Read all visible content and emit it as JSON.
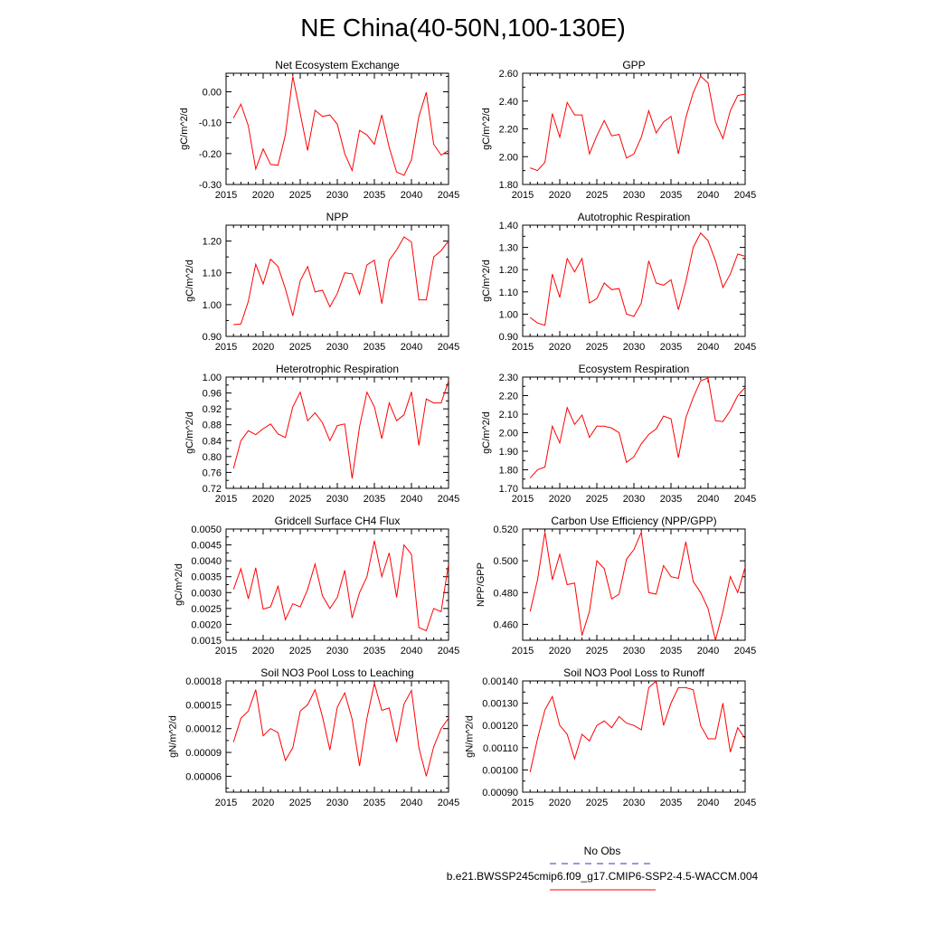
{
  "page_title": "NE China(40-50N,100-130E)",
  "legend": {
    "obs_label": "No Obs",
    "obs_color": "#3333cc",
    "model_label": "b.e21.BWSSP245cmip6.f09_g17.CMIP6-SSP2-4.5-WACCM.004",
    "model_color": "#ff0000"
  },
  "chart_data": [
    {
      "type": "line",
      "title": "Net Ecosystem Exchange",
      "ylabel": "gC/m^2/d",
      "xlim": [
        2015,
        2045
      ],
      "ylim": [
        -0.3,
        0.06
      ],
      "xticks": [
        2015,
        2020,
        2025,
        2030,
        2035,
        2040,
        2045
      ],
      "yticks": [
        -0.3,
        -0.2,
        -0.1,
        0.0
      ],
      "ytick_labels": [
        "-0.30",
        "-0.20",
        "-0.10",
        "0.00"
      ],
      "series": [
        {
          "color": "#ff0000",
          "x": [
            2016,
            2017,
            2018,
            2019,
            2020,
            2021,
            2022,
            2023,
            2024,
            2025,
            2026,
            2027,
            2028,
            2029,
            2030,
            2031,
            2032,
            2033,
            2034,
            2035,
            2036,
            2037,
            2038,
            2039,
            2040,
            2041,
            2042,
            2043,
            2044,
            2045
          ],
          "y": [
            -0.085,
            -0.04,
            -0.11,
            -0.25,
            -0.185,
            -0.235,
            -0.238,
            -0.14,
            0.05,
            -0.07,
            -0.19,
            -0.06,
            -0.08,
            -0.075,
            -0.105,
            -0.2,
            -0.255,
            -0.125,
            -0.14,
            -0.17,
            -0.075,
            -0.18,
            -0.26,
            -0.27,
            -0.22,
            -0.08,
            -0.002,
            -0.17,
            -0.205,
            -0.19
          ]
        }
      ]
    },
    {
      "type": "line",
      "title": "GPP",
      "ylabel": "gC/m^2/d",
      "xlim": [
        2015,
        2045
      ],
      "ylim": [
        1.8,
        2.6
      ],
      "xticks": [
        2015,
        2020,
        2025,
        2030,
        2035,
        2040,
        2045
      ],
      "yticks": [
        1.8,
        2.0,
        2.2,
        2.4,
        2.6
      ],
      "ytick_labels": [
        "1.80",
        "2.00",
        "2.20",
        "2.40",
        "2.60"
      ],
      "series": [
        {
          "color": "#ff0000",
          "x": [
            2016,
            2017,
            2018,
            2019,
            2020,
            2021,
            2022,
            2023,
            2024,
            2025,
            2026,
            2027,
            2028,
            2029,
            2030,
            2031,
            2032,
            2033,
            2034,
            2035,
            2036,
            2037,
            2038,
            2039,
            2040,
            2041,
            2042,
            2043,
            2044,
            2045
          ],
          "y": [
            1.92,
            1.9,
            1.96,
            2.31,
            2.14,
            2.39,
            2.3,
            2.3,
            2.02,
            2.15,
            2.26,
            2.15,
            2.16,
            1.99,
            2.02,
            2.14,
            2.33,
            2.17,
            2.25,
            2.29,
            2.02,
            2.28,
            2.46,
            2.58,
            2.53,
            2.25,
            2.13,
            2.33,
            2.44,
            2.45
          ]
        }
      ]
    },
    {
      "type": "line",
      "title": "NPP",
      "ylabel": "gC/m^2/d",
      "xlim": [
        2015,
        2045
      ],
      "ylim": [
        0.9,
        1.25
      ],
      "xticks": [
        2015,
        2020,
        2025,
        2030,
        2035,
        2040,
        2045
      ],
      "yticks": [
        0.9,
        1.0,
        1.1,
        1.2
      ],
      "ytick_labels": [
        "0.90",
        "1.00",
        "1.10",
        "1.20"
      ],
      "series": [
        {
          "color": "#ff0000",
          "x": [
            2016,
            2017,
            2018,
            2019,
            2020,
            2021,
            2022,
            2023,
            2024,
            2025,
            2026,
            2027,
            2028,
            2029,
            2030,
            2031,
            2032,
            2033,
            2034,
            2035,
            2036,
            2037,
            2038,
            2039,
            2040,
            2041,
            2042,
            2043,
            2044,
            2045
          ],
          "y": [
            0.937,
            0.939,
            1.01,
            1.127,
            1.065,
            1.143,
            1.12,
            1.05,
            0.965,
            1.075,
            1.12,
            1.04,
            1.045,
            0.993,
            1.035,
            1.1,
            1.097,
            1.033,
            1.125,
            1.14,
            1.003,
            1.14,
            1.172,
            1.213,
            1.197,
            1.015,
            1.015,
            1.15,
            1.17,
            1.2
          ]
        }
      ]
    },
    {
      "type": "line",
      "title": "Autotrophic Respiration",
      "ylabel": "gC/m^2/d",
      "xlim": [
        2015,
        2045
      ],
      "ylim": [
        0.9,
        1.4
      ],
      "xticks": [
        2015,
        2020,
        2025,
        2030,
        2035,
        2040,
        2045
      ],
      "yticks": [
        0.9,
        1.0,
        1.1,
        1.2,
        1.3,
        1.4
      ],
      "ytick_labels": [
        "0.90",
        "1.00",
        "1.10",
        "1.20",
        "1.30",
        "1.40"
      ],
      "series": [
        {
          "color": "#ff0000",
          "x": [
            2016,
            2017,
            2018,
            2019,
            2020,
            2021,
            2022,
            2023,
            2024,
            2025,
            2026,
            2027,
            2028,
            2029,
            2030,
            2031,
            2032,
            2033,
            2034,
            2035,
            2036,
            2037,
            2038,
            2039,
            2040,
            2041,
            2042,
            2043,
            2044,
            2045
          ],
          "y": [
            0.985,
            0.96,
            0.95,
            1.18,
            1.075,
            1.25,
            1.19,
            1.25,
            1.05,
            1.07,
            1.14,
            1.11,
            1.115,
            1.0,
            0.99,
            1.05,
            1.24,
            1.14,
            1.13,
            1.155,
            1.02,
            1.145,
            1.3,
            1.365,
            1.33,
            1.24,
            1.12,
            1.18,
            1.27,
            1.26
          ]
        }
      ]
    },
    {
      "type": "line",
      "title": "Heterotrophic Respiration",
      "ylabel": "gC/m^2/d",
      "xlim": [
        2015,
        2045
      ],
      "ylim": [
        0.72,
        1.0
      ],
      "xticks": [
        2015,
        2020,
        2025,
        2030,
        2035,
        2040,
        2045
      ],
      "yticks": [
        0.72,
        0.76,
        0.8,
        0.84,
        0.88,
        0.92,
        0.96,
        1.0
      ],
      "ytick_labels": [
        "0.72",
        "0.76",
        "0.80",
        "0.84",
        "0.88",
        "0.92",
        "0.96",
        "1.00"
      ],
      "series": [
        {
          "color": "#ff0000",
          "x": [
            2016,
            2017,
            2018,
            2019,
            2020,
            2021,
            2022,
            2023,
            2024,
            2025,
            2026,
            2027,
            2028,
            2029,
            2030,
            2031,
            2032,
            2033,
            2034,
            2035,
            2036,
            2037,
            2038,
            2039,
            2040,
            2041,
            2042,
            2043,
            2044,
            2045
          ],
          "y": [
            0.77,
            0.84,
            0.865,
            0.855,
            0.87,
            0.882,
            0.857,
            0.848,
            0.925,
            0.962,
            0.89,
            0.91,
            0.885,
            0.84,
            0.878,
            0.882,
            0.745,
            0.875,
            0.962,
            0.925,
            0.845,
            0.935,
            0.89,
            0.905,
            0.963,
            0.828,
            0.945,
            0.935,
            0.935,
            0.99
          ]
        }
      ]
    },
    {
      "type": "line",
      "title": "Ecosystem Respiration",
      "ylabel": "gC/m^2/d",
      "xlim": [
        2015,
        2045
      ],
      "ylim": [
        1.7,
        2.3
      ],
      "xticks": [
        2015,
        2020,
        2025,
        2030,
        2035,
        2040,
        2045
      ],
      "yticks": [
        1.7,
        1.8,
        1.9,
        2.0,
        2.1,
        2.2,
        2.3
      ],
      "ytick_labels": [
        "1.70",
        "1.80",
        "1.90",
        "2.00",
        "2.10",
        "2.20",
        "2.30"
      ],
      "series": [
        {
          "color": "#ff0000",
          "x": [
            2016,
            2017,
            2018,
            2019,
            2020,
            2021,
            2022,
            2023,
            2024,
            2025,
            2026,
            2027,
            2028,
            2029,
            2030,
            2031,
            2032,
            2033,
            2034,
            2035,
            2036,
            2037,
            2038,
            2039,
            2040,
            2041,
            2042,
            2043,
            2044,
            2045
          ],
          "y": [
            1.755,
            1.8,
            1.815,
            2.035,
            1.945,
            2.135,
            2.045,
            2.095,
            1.975,
            2.035,
            2.035,
            2.025,
            2.0,
            1.84,
            1.87,
            1.94,
            1.99,
            2.02,
            2.09,
            2.075,
            1.865,
            2.08,
            2.19,
            2.28,
            2.295,
            2.065,
            2.06,
            2.12,
            2.2,
            2.245
          ]
        }
      ]
    },
    {
      "type": "line",
      "title": "Gridcell Surface CH4 Flux",
      "ylabel": "gC/m^2/d",
      "xlim": [
        2015,
        2045
      ],
      "ylim": [
        0.0015,
        0.005
      ],
      "xticks": [
        2015,
        2020,
        2025,
        2030,
        2035,
        2040,
        2045
      ],
      "yticks": [
        0.0015,
        0.002,
        0.0025,
        0.003,
        0.0035,
        0.004,
        0.0045,
        0.005
      ],
      "ytick_labels": [
        "0.0015",
        "0.0020",
        "0.0025",
        "0.0030",
        "0.0035",
        "0.0040",
        "0.0045",
        "0.0050"
      ],
      "series": [
        {
          "color": "#ff0000",
          "x": [
            2016,
            2017,
            2018,
            2019,
            2020,
            2021,
            2022,
            2023,
            2024,
            2025,
            2026,
            2027,
            2028,
            2029,
            2030,
            2031,
            2032,
            2033,
            2034,
            2035,
            2036,
            2037,
            2038,
            2039,
            2040,
            2041,
            2042,
            2043,
            2044,
            2045
          ],
          "y": [
            0.0031,
            0.00375,
            0.0028,
            0.00378,
            0.00248,
            0.00255,
            0.0032,
            0.00215,
            0.00265,
            0.00255,
            0.0031,
            0.0039,
            0.0029,
            0.0025,
            0.00285,
            0.0037,
            0.0022,
            0.003,
            0.0035,
            0.00463,
            0.0035,
            0.00425,
            0.00285,
            0.0045,
            0.0042,
            0.0019,
            0.0018,
            0.0025,
            0.0024,
            0.0039
          ]
        }
      ]
    },
    {
      "type": "line",
      "title": "Carbon Use Efficiency (NPP/GPP)",
      "ylabel": "NPP/GPP",
      "xlim": [
        2015,
        2045
      ],
      "ylim": [
        0.45,
        0.52
      ],
      "xticks": [
        2015,
        2020,
        2025,
        2030,
        2035,
        2040,
        2045
      ],
      "yticks": [
        0.46,
        0.48,
        0.5,
        0.52
      ],
      "ytick_labels": [
        "0.460",
        "0.480",
        "0.500",
        "0.520"
      ],
      "series": [
        {
          "color": "#ff0000",
          "x": [
            2016,
            2017,
            2018,
            2019,
            2020,
            2021,
            2022,
            2023,
            2024,
            2025,
            2026,
            2027,
            2028,
            2029,
            2030,
            2031,
            2032,
            2033,
            2034,
            2035,
            2036,
            2037,
            2038,
            2039,
            2040,
            2041,
            2042,
            2043,
            2044,
            2045
          ],
          "y": [
            0.468,
            0.488,
            0.518,
            0.488,
            0.504,
            0.485,
            0.486,
            0.453,
            0.468,
            0.5,
            0.495,
            0.476,
            0.479,
            0.501,
            0.507,
            0.518,
            0.48,
            0.479,
            0.497,
            0.49,
            0.489,
            0.512,
            0.487,
            0.48,
            0.47,
            0.45,
            0.468,
            0.49,
            0.48,
            0.496
          ]
        }
      ]
    },
    {
      "type": "line",
      "title": "Soil NO3 Pool Loss to Leaching",
      "ylabel": "gN/m^2/d",
      "xlim": [
        2015,
        2045
      ],
      "ylim": [
        4e-05,
        0.00018
      ],
      "xticks": [
        2015,
        2020,
        2025,
        2030,
        2035,
        2040,
        2045
      ],
      "yticks": [
        6e-05,
        9e-05,
        0.00012,
        0.00015,
        0.00018
      ],
      "ytick_labels": [
        "0.00006",
        "0.00009",
        "0.00012",
        "0.00015",
        "0.00018"
      ],
      "series": [
        {
          "color": "#ff0000",
          "x": [
            2016,
            2017,
            2018,
            2019,
            2020,
            2021,
            2022,
            2023,
            2024,
            2025,
            2026,
            2027,
            2028,
            2029,
            2030,
            2031,
            2032,
            2033,
            2034,
            2035,
            2036,
            2037,
            2038,
            2039,
            2040,
            2041,
            2042,
            2043,
            2044,
            2045
          ],
          "y": [
            0.000103,
            0.000133,
            0.000142,
            0.000169,
            0.000111,
            0.00012,
            0.000115,
            8e-05,
            9.6e-05,
            0.000142,
            0.00015,
            0.000169,
            0.000135,
            9.3e-05,
            0.000147,
            0.000165,
            0.000132,
            7.3e-05,
            0.000133,
            0.000177,
            0.000143,
            0.000146,
            0.000103,
            0.000151,
            0.000168,
            9.6e-05,
            6e-05,
            9.7e-05,
            0.00012,
            0.000133
          ]
        }
      ]
    },
    {
      "type": "line",
      "title": "Soil NO3 Pool Loss to Runoff",
      "ylabel": "gN/m^2/d",
      "xlim": [
        2015,
        2045
      ],
      "ylim": [
        0.0009,
        0.0014
      ],
      "xticks": [
        2015,
        2020,
        2025,
        2030,
        2035,
        2040,
        2045
      ],
      "yticks": [
        0.0009,
        0.001,
        0.0011,
        0.0012,
        0.0013,
        0.0014
      ],
      "ytick_labels": [
        "0.00090",
        "0.00100",
        "0.00110",
        "0.00120",
        "0.00130",
        "0.00140"
      ],
      "series": [
        {
          "color": "#ff0000",
          "x": [
            2016,
            2017,
            2018,
            2019,
            2020,
            2021,
            2022,
            2023,
            2024,
            2025,
            2026,
            2027,
            2028,
            2029,
            2030,
            2031,
            2032,
            2033,
            2034,
            2035,
            2036,
            2037,
            2038,
            2039,
            2040,
            2041,
            2042,
            2043,
            2044,
            2045
          ],
          "y": [
            0.00099,
            0.00114,
            0.00127,
            0.00133,
            0.0012,
            0.00116,
            0.00105,
            0.00116,
            0.00113,
            0.0012,
            0.00122,
            0.00119,
            0.00124,
            0.00121,
            0.0012,
            0.00118,
            0.00137,
            0.0014,
            0.0012,
            0.0013,
            0.00137,
            0.00137,
            0.00136,
            0.0012,
            0.00114,
            0.00114,
            0.0013,
            0.00108,
            0.00119,
            0.00114
          ]
        }
      ]
    }
  ]
}
